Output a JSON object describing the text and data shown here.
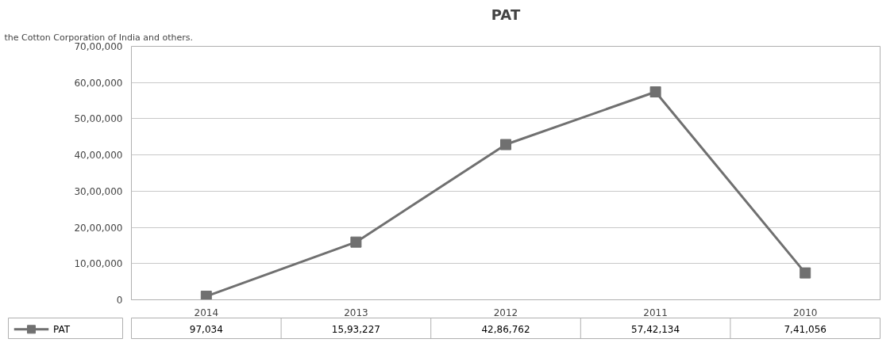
{
  "chart_data": {
    "type": "line",
    "title": "PAT",
    "annotations": [
      "the Cotton Corporation of India and others."
    ],
    "categories": [
      "2014",
      "2013",
      "2012",
      "2011",
      "2010"
    ],
    "series": [
      {
        "name": "PAT",
        "color": "#707070",
        "values": [
          97034,
          1593227,
          4286762,
          5742134,
          741056
        ],
        "value_labels": [
          "97,034",
          "15,93,227",
          "42,86,762",
          "57,42,134",
          "7,41,056"
        ]
      }
    ],
    "ylim": [
      0,
      7000000
    ],
    "yticks": [
      {
        "value": 0,
        "label": "0"
      },
      {
        "value": 1000000,
        "label": "10,00,000"
      },
      {
        "value": 2000000,
        "label": "20,00,000"
      },
      {
        "value": 3000000,
        "label": "30,00,000"
      },
      {
        "value": 4000000,
        "label": "40,00,000"
      },
      {
        "value": 5000000,
        "label": "50,00,000"
      },
      {
        "value": 6000000,
        "label": "60,00,000"
      },
      {
        "value": 7000000,
        "label": "70,00,000"
      }
    ],
    "grid": "y",
    "marker": "square",
    "line_style": "solid",
    "legend": "bottom left"
  }
}
